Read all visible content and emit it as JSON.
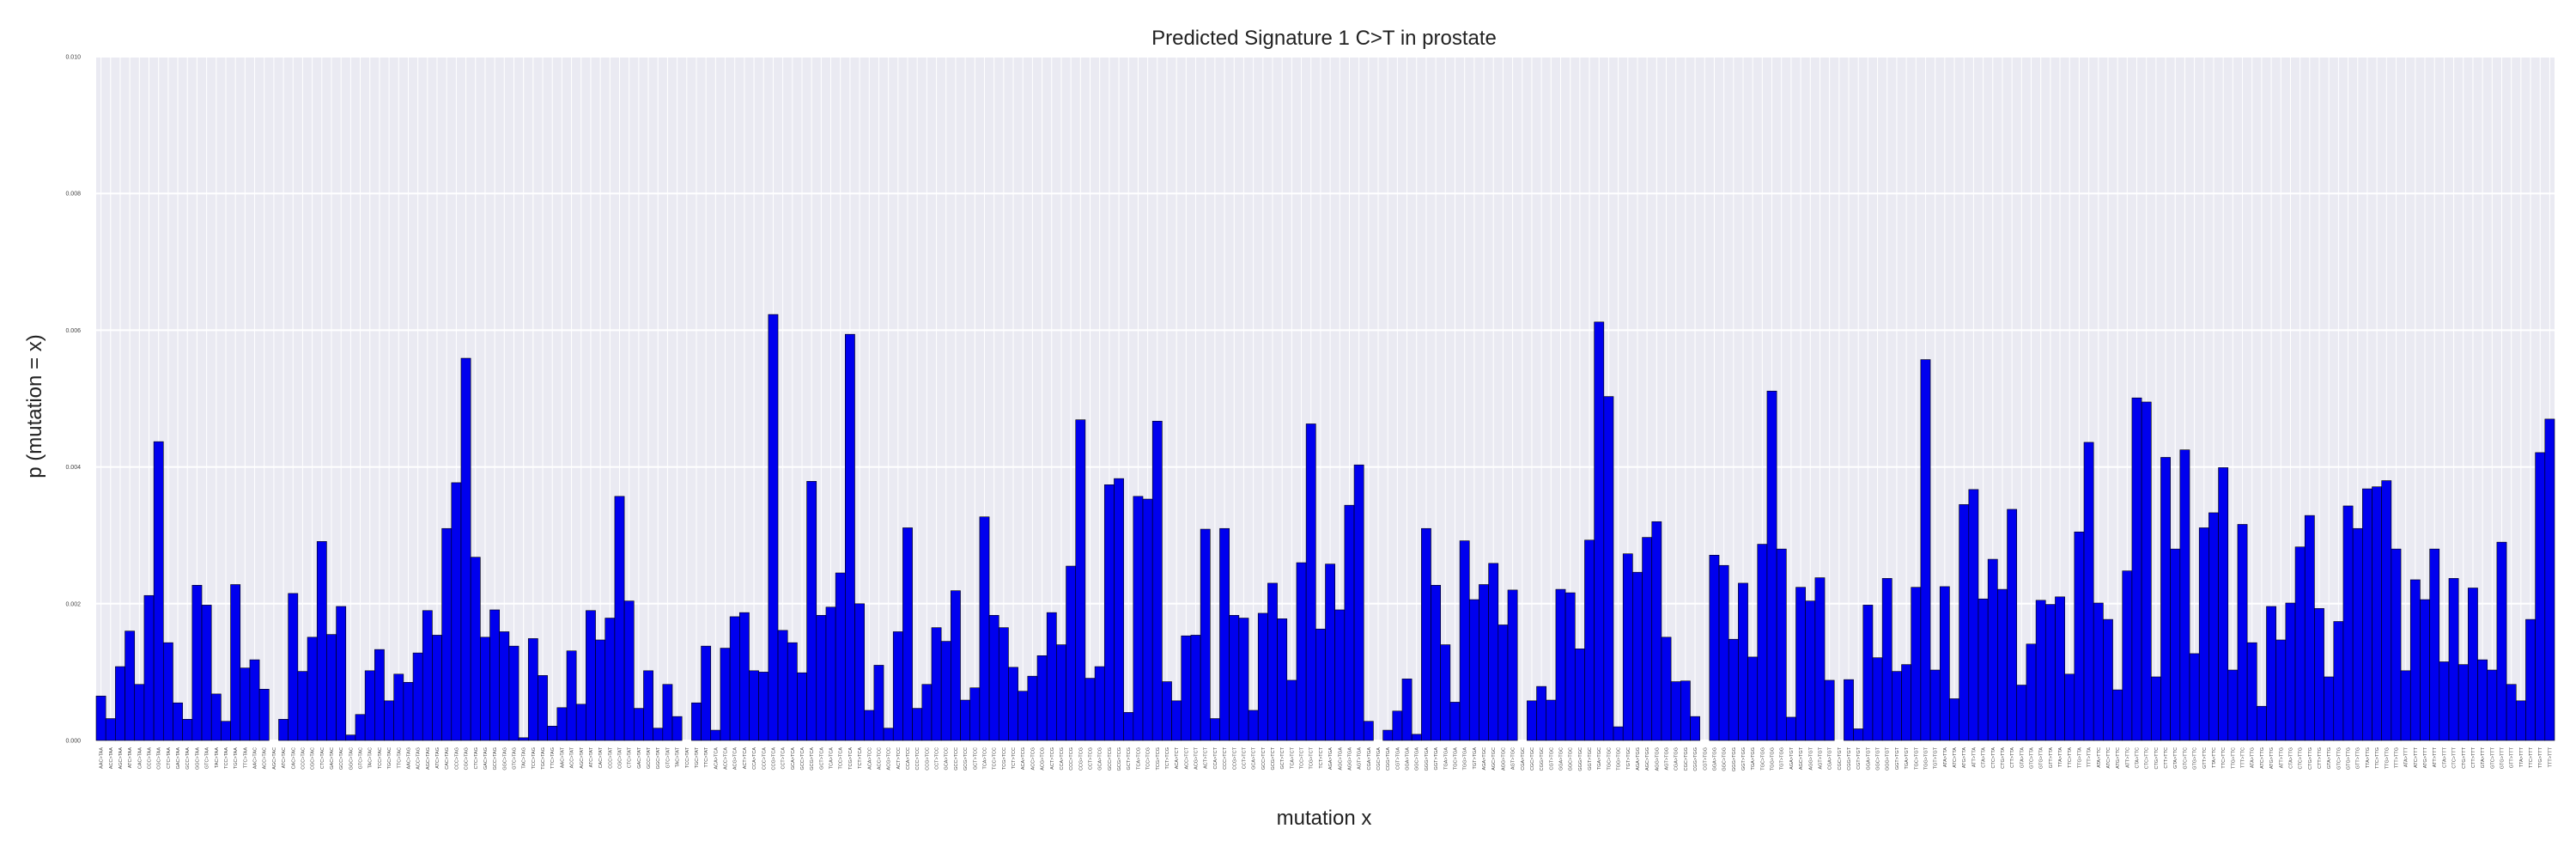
{
  "chart_data": {
    "type": "bar",
    "title": "Predicted Signature 1 C>T in prostate",
    "xlabel": "mutation x",
    "ylabel": "p (mutation = x)",
    "ylim": [
      0,
      0.01
    ],
    "yticks": [
      "0.000",
      "0.002",
      "0.004",
      "0.006",
      "0.008",
      "0.010"
    ],
    "grid": true,
    "bar_color": "#0000ee",
    "bar_edge_color": "#000000",
    "background": "#eaeaf2",
    "categories": [
      "AAC>TAA",
      "ACC>TAA",
      "AGC>TAA",
      "ATC>TAA",
      "CAC>TAA",
      "CCC>TAA",
      "CGC>TAA",
      "CTC>TAA",
      "GAC>TAA",
      "GCC>TAA",
      "GGC>TAA",
      "GTC>TAA",
      "TAC>TAA",
      "TCC>TAA",
      "TGC>TAA",
      "TTC>TAA",
      "AAC>TAC",
      "ACC>TAC",
      "AGC>TAC",
      "ATC>TAC",
      "CAC>TAC",
      "CCC>TAC",
      "CGC>TAC",
      "CTC>TAC",
      "GAC>TAC",
      "GCC>TAC",
      "GGC>TAC",
      "GTC>TAC",
      "TAC>TAC",
      "TCC>TAC",
      "TGC>TAC",
      "TTC>TAC",
      "AAC>TAG",
      "ACC>TAG",
      "AGC>TAG",
      "ATC>TAG",
      "CAC>TAG",
      "CCC>TAG",
      "CGC>TAG",
      "CTC>TAG",
      "GAC>TAG",
      "GCC>TAG",
      "GGC>TAG",
      "GTC>TAG",
      "TAC>TAG",
      "TCC>TAG",
      "TGC>TAG",
      "TTC>TAG",
      "AAC>TAT",
      "ACC>TAT",
      "AGC>TAT",
      "ATC>TAT",
      "CAC>TAT",
      "CCC>TAT",
      "CGC>TAT",
      "CTC>TAT",
      "GAC>TAT",
      "GCC>TAT",
      "GGC>TAT",
      "GTC>TAT",
      "TAC>TAT",
      "TCC>TAT",
      "TGC>TAT",
      "TTC>TAT",
      "ACA>TCA",
      "ACC>TCA",
      "ACG>TCA",
      "ACT>TCA",
      "CCA>TCA",
      "CCC>TCA",
      "CCG>TCA",
      "CCT>TCA",
      "GCA>TCA",
      "GCC>TCA",
      "GCG>TCA",
      "GCT>TCA",
      "TCA>TCA",
      "TCC>TCA",
      "TCG>TCA",
      "TCT>TCA",
      "ACA>TCC",
      "ACC>TCC",
      "ACG>TCC",
      "ACT>TCC",
      "CCA>TCC",
      "CCC>TCC",
      "CCG>TCC",
      "CCT>TCC",
      "GCA>TCC",
      "GCC>TCC",
      "GCG>TCC",
      "GCT>TCC",
      "TCA>TCC",
      "TCC>TCC",
      "TCG>TCC",
      "TCT>TCC",
      "ACA>TCG",
      "ACC>TCG",
      "ACG>TCG",
      "ACT>TCG",
      "CCA>TCG",
      "CCC>TCG",
      "CCG>TCG",
      "CCT>TCG",
      "GCA>TCG",
      "GCC>TCG",
      "GCG>TCG",
      "GCT>TCG",
      "TCA>TCG",
      "TCC>TCG",
      "TCG>TCG",
      "TCT>TCG",
      "ACA>TCT",
      "ACC>TCT",
      "ACG>TCT",
      "ACT>TCT",
      "CCA>TCT",
      "CCC>TCT",
      "CCG>TCT",
      "CCT>TCT",
      "GCA>TCT",
      "GCC>TCT",
      "GCG>TCT",
      "GCT>TCT",
      "TCA>TCT",
      "TCC>TCT",
      "TCG>TCT",
      "TCT>TCT",
      "AGA>TGA",
      "AGC>TGA",
      "AGG>TGA",
      "AGT>TGA",
      "CGA>TGA",
      "CGC>TGA",
      "CGG>TGA",
      "CGT>TGA",
      "GGA>TGA",
      "GGC>TGA",
      "GGG>TGA",
      "GGT>TGA",
      "TGA>TGA",
      "TGC>TGA",
      "TGG>TGA",
      "TGT>TGA",
      "AGA>TGC",
      "AGC>TGC",
      "AGG>TGC",
      "AGT>TGC",
      "CGA>TGC",
      "CGC>TGC",
      "CGG>TGC",
      "CGT>TGC",
      "GGA>TGC",
      "GGC>TGC",
      "GGG>TGC",
      "GGT>TGC",
      "TGA>TGC",
      "TGC>TGC",
      "TGG>TGC",
      "TGT>TGC",
      "AGA>TGG",
      "AGC>TGG",
      "AGG>TGG",
      "AGT>TGG",
      "CGA>TGG",
      "CGC>TGG",
      "CGG>TGG",
      "CGT>TGG",
      "GGA>TGG",
      "GGC>TGG",
      "GGG>TGG",
      "GGT>TGG",
      "TGA>TGG",
      "TGC>TGG",
      "TGG>TGG",
      "TGT>TGG",
      "AGA>TGT",
      "AGC>TGT",
      "AGG>TGT",
      "AGT>TGT",
      "CGA>TGT",
      "CGC>TGT",
      "CGG>TGT",
      "CGT>TGT",
      "GGA>TGT",
      "GGC>TGT",
      "GGG>TGT",
      "GGT>TGT",
      "TGA>TGT",
      "TGC>TGT",
      "TGG>TGT",
      "TGT>TGT",
      "ATA>TTA",
      "ATC>TTA",
      "ATG>TTA",
      "ATT>TTA",
      "CTA>TTA",
      "CTC>TTA",
      "CTG>TTA",
      "CTT>TTA",
      "GTA>TTA",
      "GTC>TTA",
      "GTG>TTA",
      "GTT>TTA",
      "TTA>TTA",
      "TTC>TTA",
      "TTG>TTA",
      "TTT>TTA",
      "ATA>TTC",
      "ATC>TTC",
      "ATG>TTC",
      "ATT>TTC",
      "CTA>TTC",
      "CTC>TTC",
      "CTG>TTC",
      "CTT>TTC",
      "GTA>TTC",
      "GTC>TTC",
      "GTG>TTC",
      "GTT>TTC",
      "TTA>TTC",
      "TTC>TTC",
      "TTG>TTC",
      "TTT>TTC",
      "ATA>TTG",
      "ATC>TTG",
      "ATG>TTG",
      "ATT>TTG",
      "CTA>TTG",
      "CTC>TTG",
      "CTG>TTG",
      "CTT>TTG",
      "GTA>TTG",
      "GTC>TTG",
      "GTG>TTG",
      "GTT>TTG",
      "TTA>TTG",
      "TTC>TTG",
      "TTG>TTG",
      "TTT>TTG",
      "ATA>TTT",
      "ATC>TTT",
      "ATG>TTT",
      "ATT>TTT",
      "CTA>TTT",
      "CTC>TTT",
      "CTG>TTT",
      "CTT>TTT",
      "GTA>TTT",
      "GTC>TTT",
      "GTG>TTT",
      "GTT>TTT",
      "TTA>TTT",
      "TTC>TTT",
      "TTG>TTT",
      "TTT>TTT"
    ],
    "values": [
      0.00065,
      0.00032,
      0.00108,
      0.0016,
      0.00082,
      0.00212,
      0.00437,
      0.00143,
      0.00055,
      0.00031,
      0.00227,
      0.00198,
      0.00068,
      0.00028,
      0.00228,
      0.00106,
      0.00118,
      0.00075,
      0.0,
      0.00031,
      0.00215,
      0.00101,
      0.00151,
      0.00291,
      0.00155,
      0.00196,
      8e-05,
      0.00038,
      0.00102,
      0.00133,
      0.00058,
      0.00097,
      0.00085,
      0.00128,
      0.0019,
      0.00154,
      0.0031,
      0.00377,
      0.00559,
      0.00268,
      0.00151,
      0.00191,
      0.00159,
      0.00138,
      4e-05,
      0.00149,
      0.00095,
      0.00021,
      0.00048,
      0.00131,
      0.00053,
      0.0019,
      0.00147,
      0.00179,
      0.00357,
      0.00204,
      0.00047,
      0.00102,
      0.00018,
      0.00082,
      0.00035,
      0.0,
      0.00055,
      0.00138,
      0.00015,
      0.00135,
      0.00181,
      0.00187,
      0.00102,
      0.001,
      0.00623,
      0.00161,
      0.00143,
      0.00099,
      0.00379,
      0.00183,
      0.00195,
      0.00245,
      0.00594,
      0.002,
      0.00044,
      0.0011,
      0.00018,
      0.00159,
      0.00311,
      0.00047,
      0.00082,
      0.00165,
      0.00145,
      0.00219,
      0.00059,
      0.00077,
      0.00327,
      0.00183,
      0.00165,
      0.00107,
      0.00072,
      0.00094,
      0.00124,
      0.00187,
      0.0014,
      0.00255,
      0.00469,
      0.00091,
      0.00108,
      0.00374,
      0.00383,
      0.00041,
      0.00357,
      0.00353,
      0.00467,
      0.00086,
      0.00058,
      0.00153,
      0.00154,
      0.00309,
      0.00032,
      0.0031,
      0.00183,
      0.00179,
      0.00044,
      0.00186,
      0.0023,
      0.00178,
      0.00088,
      0.0026,
      0.00463,
      0.00163,
      0.00258,
      0.00191,
      0.00344,
      0.00403,
      0.00028,
      0.0,
      0.00015,
      0.00043,
      0.0009,
      9e-05,
      0.0031,
      0.00227,
      0.0014,
      0.00056,
      0.00292,
      0.00206,
      0.00228,
      0.00259,
      0.00169,
      0.0022,
      0.0,
      0.00058,
      0.00079,
      0.00059,
      0.00221,
      0.00216,
      0.00134,
      0.00293,
      0.00612,
      0.00503,
      0.0002,
      0.00273,
      0.00246,
      0.00297,
      0.0032,
      0.00151,
      0.00086,
      0.00087,
      0.00035,
      0.0,
      0.00271,
      0.00256,
      0.00148,
      0.0023,
      0.00122,
      0.00287,
      0.00511,
      0.0028,
      0.00034,
      0.00224,
      0.00204,
      0.00238,
      0.00088,
      0.0,
      0.00089,
      0.00017,
      0.00198,
      0.00121,
      0.00237,
      0.00101,
      0.00111,
      0.00224,
      0.00557,
      0.00103,
      0.00225,
      0.00061,
      0.00345,
      0.00367,
      0.00207,
      0.00265,
      0.00221,
      0.00338,
      0.00081,
      0.00141,
      0.00205,
      0.00199,
      0.0021,
      0.00097,
      0.00305,
      0.00436,
      0.00201,
      0.00177,
      0.00074,
      0.00248,
      0.00501,
      0.00495,
      0.00093,
      0.00414,
      0.0028,
      0.00425,
      0.00127,
      0.00311,
      0.00333,
      0.00399,
      0.00103,
      0.00316,
      0.00143,
      0.0005,
      0.00196,
      0.00147,
      0.00201,
      0.00283,
      0.00329,
      0.00193,
      0.00093,
      0.00174,
      0.00343,
      0.0031,
      0.00368,
      0.00371,
      0.0038,
      0.0028,
      0.00102,
      0.00235,
      0.00206,
      0.0028,
      0.00115,
      0.00237,
      0.00111,
      0.00223,
      0.00118,
      0.00103,
      0.0029,
      0.00082,
      0.00058,
      0.00177,
      0.00421,
      0.0047
    ]
  }
}
